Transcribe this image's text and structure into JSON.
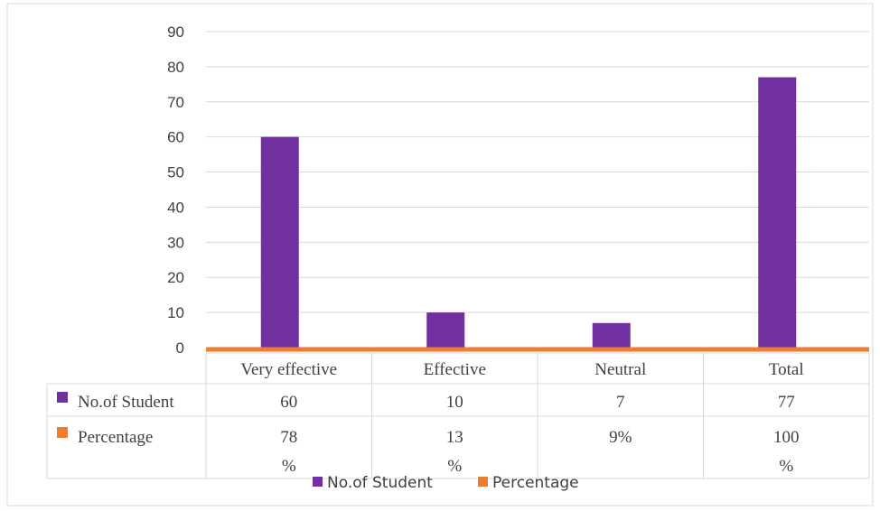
{
  "chart_data": {
    "type": "bar",
    "categories": [
      "Very effective",
      "Effective",
      "Neutral",
      "Total"
    ],
    "series": [
      {
        "name": "No.of Student",
        "color": "#7030a0",
        "values": [
          60,
          10,
          7,
          77
        ]
      },
      {
        "name": "Percentage",
        "color": "#ed7d31",
        "values": [
          0.78,
          0.13,
          0.09,
          1.0
        ]
      }
    ],
    "ylim": [
      0,
      90
    ],
    "yticks": [
      0,
      10,
      20,
      30,
      40,
      50,
      60,
      70,
      80,
      90
    ],
    "grid": true,
    "legend_position": "bottom",
    "data_table": {
      "rows": [
        {
          "label": "No.of Student",
          "cells": [
            [
              "60"
            ],
            [
              "10"
            ],
            [
              "7"
            ],
            [
              "77"
            ]
          ]
        },
        {
          "label": "Percentage",
          "cells": [
            [
              "78",
              "%"
            ],
            [
              "13",
              "%"
            ],
            [
              "9%"
            ],
            [
              "100",
              "%"
            ]
          ]
        }
      ]
    },
    "title": "",
    "xlabel": "",
    "ylabel": ""
  }
}
